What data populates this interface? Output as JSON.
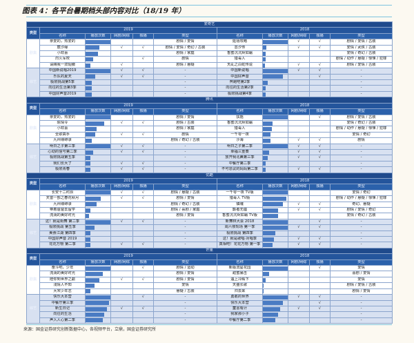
{
  "title": "图表 4：各平台暑期档头部内容对比（18/19 年）",
  "headers": {
    "category": "类型",
    "name": "名称",
    "plays": "播放次数",
    "web": "网剧/网综",
    "exclusive": "独播",
    "genre": "类型"
  },
  "row_labels": {
    "drama": "剧集",
    "variety": "综艺"
  },
  "colors": {
    "header": "#1f4a8c",
    "bar": "#4a7bc3",
    "variety_row": "#d8e1f1"
  },
  "sections": [
    {
      "platform": "爱奇艺",
      "years": [
        {
          "year": "2019",
          "drama": [
            {
              "name": "亲爱的，热爱的",
              "plays": 1.0,
              "web": "",
              "exclusive": "",
              "genre": "剧情 / 爱情"
            },
            {
              "name": "宸汐缘",
              "plays": 0.55,
              "web": "√",
              "exclusive": "√",
              "genre": "剧情 / 爱情 / 奇幻 / 古装"
            },
            {
              "name": "小欢喜",
              "plays": 0.5,
              "web": "",
              "exclusive": "",
              "genre": "剧情 / 家庭"
            },
            {
              "name": "烈火军校",
              "plays": 0.3,
              "web": "",
              "exclusive": "√",
              "genre": "剧情"
            },
            {
              "name": "请赐我一双翅膀",
              "plays": 0.2,
              "web": "√",
              "exclusive": "",
              "genre": "剧情 / 悬疑"
            }
          ],
          "variety": [
            {
              "name": "中国新说唱2019",
              "plays": 1.0,
              "web": "√",
              "exclusive": "√",
              "genre": "-"
            },
            {
              "name": "乐队的夏天",
              "plays": 0.4,
              "web": "√",
              "exclusive": "√",
              "genre": "-"
            },
            {
              "name": "极限挑战第5季",
              "plays": 0.25,
              "web": "",
              "exclusive": "",
              "genre": "-"
            },
            {
              "name": "向往的生活第3季",
              "plays": 0.25,
              "web": "",
              "exclusive": "",
              "genre": "-"
            },
            {
              "name": "中国好声音2019",
              "plays": 0.25,
              "web": "",
              "exclusive": "",
              "genre": "-"
            }
          ]
        },
        {
          "year": "2018",
          "drama": [
            {
              "name": "延禧攻略",
              "plays": 1.0,
              "web": "√",
              "exclusive": "√",
              "genre": "剧情 / 爱情 / 古装"
            },
            {
              "name": "芸汐传",
              "plays": 0.15,
              "web": "√",
              "exclusive": "√",
              "genre": "爱情 / 武侠 / 古装"
            },
            {
              "name": "香蜜沉沉烬如霜",
              "plays": 0.1,
              "web": "",
              "exclusive": "",
              "genre": "爱情 / 奇幻 / 古装"
            },
            {
              "name": "猎毒人",
              "plays": 0.1,
              "web": "",
              "exclusive": "",
              "genre": "剧情 / 动作 / 悬疑 / 惊悚 / 犯罪"
            },
            {
              "name": "天乩之白蛇传说",
              "plays": 0.08,
              "web": "√",
              "exclusive": "√",
              "genre": "剧情 / 爱情 / 古装"
            }
          ],
          "variety": [
            {
              "name": "中国新说唱",
              "plays": 1.0,
              "web": "√",
              "exclusive": "√",
              "genre": "-"
            },
            {
              "name": "中国好声音",
              "plays": 0.8,
              "web": "",
              "exclusive": "√",
              "genre": "-"
            },
            {
              "name": "奔跑吧第2季",
              "plays": 0.2,
              "web": "",
              "exclusive": "",
              "genre": "-"
            },
            {
              "name": "向往的生活第2季",
              "plays": 0.1,
              "web": "",
              "exclusive": "",
              "genre": "-"
            },
            {
              "name": "极限挑战第4季",
              "plays": 0.1,
              "web": "",
              "exclusive": "",
              "genre": "-"
            }
          ]
        }
      ]
    },
    {
      "platform": "腾讯",
      "years": [
        {
          "year": "2019",
          "drama": [
            {
              "name": "亲爱的，热爱的",
              "plays": 1.0,
              "web": "",
              "exclusive": "",
              "genre": "剧情 / 爱情"
            },
            {
              "name": "陈情令",
              "plays": 0.75,
              "web": "√",
              "exclusive": "√",
              "genre": "剧情 / 古装"
            },
            {
              "name": "小欢喜",
              "plays": 0.45,
              "web": "",
              "exclusive": "",
              "genre": "剧情 / 家庭"
            },
            {
              "name": "全职高手",
              "plays": 0.4,
              "web": "√",
              "exclusive": "√",
              "genre": "剧情"
            },
            {
              "name": "九州缥缈录",
              "plays": 0.25,
              "web": "",
              "exclusive": "",
              "genre": "剧情 / 奇幻 / 古装"
            }
          ],
          "variety": [
            {
              "name": "明日之子第三季",
              "plays": 1.0,
              "web": "√",
              "exclusive": "√",
              "genre": "-"
            },
            {
              "name": "心动的信号第二季",
              "plays": 0.3,
              "web": "√",
              "exclusive": "√",
              "genre": "-"
            },
            {
              "name": "极限挑战第五季",
              "plays": 0.2,
              "web": "",
              "exclusive": "",
              "genre": "-"
            },
            {
              "name": "我们长大了",
              "plays": 0.2,
              "web": "√",
              "exclusive": "√",
              "genre": "-"
            },
            {
              "name": "极限青春",
              "plays": 0.2,
              "web": "√",
              "exclusive": "√",
              "genre": "-"
            }
          ]
        },
        {
          "year": "2018",
          "drama": [
            {
              "name": "扶摇",
              "plays": 1.0,
              "web": "",
              "exclusive": "√",
              "genre": "剧情 / 爱情 / 古装"
            },
            {
              "name": "香蜜沉沉烬如霜",
              "plays": 0.4,
              "web": "",
              "exclusive": "",
              "genre": "爱情 / 奇幻 / 古装"
            },
            {
              "name": "猎毒人",
              "plays": 0.35,
              "web": "",
              "exclusive": "",
              "genre": "剧情 / 动作 / 悬疑 / 惊悚 / 犯罪"
            },
            {
              "name": "一千零一夜",
              "plays": 0.3,
              "web": "",
              "exclusive": "",
              "genre": "爱情 / 奇幻"
            },
            {
              "name": "沙海",
              "plays": 0.3,
              "web": "√",
              "exclusive": "√",
              "genre": "剧情"
            }
          ],
          "variety": [
            {
              "name": "明日之子第二季",
              "plays": 1.0,
              "web": "√",
              "exclusive": "√",
              "genre": "-"
            },
            {
              "name": "幸福三重奏",
              "plays": 0.25,
              "web": "√",
              "exclusive": "√",
              "genre": "-"
            },
            {
              "name": "放开我北鼻第三季",
              "plays": 0.2,
              "web": "√",
              "exclusive": "√",
              "genre": "-"
            },
            {
              "name": "中餐厅第二季",
              "plays": 0.1,
              "web": "",
              "exclusive": "",
              "genre": "-"
            },
            {
              "name": "不可思议的妈妈第二季",
              "plays": 0.1,
              "web": "√",
              "exclusive": "√",
              "genre": "-"
            }
          ]
        }
      ]
    },
    {
      "platform": "优酷",
      "years": [
        {
          "year": "2019",
          "drama": [
            {
              "name": "长安十二时辰",
              "plays": 1.0,
              "web": "√",
              "exclusive": "√",
              "genre": "剧情 / 悬疑 / 古装"
            },
            {
              "name": "天雷一部之春花秋月",
              "plays": 0.6,
              "web": "√",
              "exclusive": "√",
              "genre": "剧情 / 爱情"
            },
            {
              "name": "九州缥缈录",
              "plays": 0.45,
              "web": "",
              "exclusive": "",
              "genre": "剧情 / 奇幻 / 古装"
            },
            {
              "name": "带着爸爸去留学",
              "plays": 0.2,
              "web": "",
              "exclusive": "",
              "genre": "剧情 / 喜剧 / 家庭"
            },
            {
              "name": "流淌的美好时光",
              "plays": 0.15,
              "web": "",
              "exclusive": "",
              "genre": "剧情 / 爱情"
            }
          ],
          "variety": [
            {
              "name": "这！就是街舞 第二季",
              "plays": 1.0,
              "web": "√",
              "exclusive": "√",
              "genre": "-"
            },
            {
              "name": "极限挑战 第五季",
              "plays": 0.35,
              "web": "",
              "exclusive": "",
              "genre": "-"
            },
            {
              "name": "美食江湖 第四季",
              "plays": 0.2,
              "web": "",
              "exclusive": "",
              "genre": "-"
            },
            {
              "name": "中国好声音 2019",
              "plays": 0.2,
              "web": "",
              "exclusive": "",
              "genre": "-"
            },
            {
              "name": "花花万物 第二季",
              "plays": 0.2,
              "web": "√",
              "exclusive": "√",
              "genre": "-"
            }
          ]
        },
        {
          "year": "2018",
          "drama": [
            {
              "name": "一千零一夜 TV版",
              "plays": 1.0,
              "web": "",
              "exclusive": "",
              "genre": "爱情 / 奇幻"
            },
            {
              "name": "猎毒人 TV版",
              "plays": 0.95,
              "web": "",
              "exclusive": "",
              "genre": "剧情 / 动作 / 悬疑 / 惊悚 / 犯罪"
            },
            {
              "name": "镇魂",
              "plays": 0.8,
              "web": "√",
              "exclusive": "√",
              "genre": "奇幻、悬疑"
            },
            {
              "name": "颤者无疆",
              "plays": 0.6,
              "web": "√",
              "exclusive": "√",
              "genre": "剧情 / 爱情 / 奇幻"
            },
            {
              "name": "香蜜沉沉烬如霜 TV版",
              "plays": 0.6,
              "web": "",
              "exclusive": "",
              "genre": "爱情 / 奇幻 / 古装"
            }
          ],
          "variety": [
            {
              "name": "新舞林大会 2018",
              "plays": 1.0,
              "web": "",
              "exclusive": "√",
              "genre": "-"
            },
            {
              "name": "周六夜现场 第一季",
              "plays": 1.0,
              "web": "√",
              "exclusive": "√",
              "genre": "-"
            },
            {
              "name": "极限挑战 第四季",
              "plays": 0.5,
              "web": "",
              "exclusive": "",
              "genre": "-"
            },
            {
              "name": "这！就是歌唱·对唱季",
              "plays": 0.45,
              "web": "√",
              "exclusive": "√",
              "genre": "-"
            },
            {
              "name": "真相吧！花花万物 第一季",
              "plays": 0.4,
              "web": "√",
              "exclusive": "√",
              "genre": "-"
            }
          ]
        }
      ]
    },
    {
      "platform": "芒果",
      "years": [
        {
          "year": "2019",
          "drama": [
            {
              "name": "奋斗吧，少年",
              "plays": 1.0,
              "web": "",
              "exclusive": "√",
              "genre": "剧情 / 运动"
            },
            {
              "name": "流淌的美好时光",
              "plays": 0.7,
              "web": "",
              "exclusive": "",
              "genre": "剧情 / 爱情"
            },
            {
              "name": "陪你到世界之巅",
              "plays": 0.55,
              "web": "√",
              "exclusive": "√",
              "genre": "剧情 / 爱情"
            },
            {
              "name": "浅情人不知",
              "plays": 0.35,
              "web": "",
              "exclusive": "",
              "genre": "爱情"
            },
            {
              "name": "大宋少年志",
              "plays": 0.2,
              "web": "",
              "exclusive": "",
              "genre": "悬疑 / 古装"
            }
          ],
          "variety": [
            {
              "name": "快乐大本营",
              "plays": 1.0,
              "web": "",
              "exclusive": "√",
              "genre": "-"
            },
            {
              "name": "中餐厅第三季",
              "plays": 0.95,
              "web": "",
              "exclusive": "",
              "genre": "-"
            },
            {
              "name": "新生日记",
              "plays": 0.85,
              "web": "√",
              "exclusive": "√",
              "genre": "-"
            },
            {
              "name": "向往的生活",
              "plays": 0.75,
              "web": "",
              "exclusive": "",
              "genre": "-"
            },
            {
              "name": "声入人心第二季",
              "plays": 0.7,
              "web": "",
              "exclusive": "",
              "genre": "-"
            }
          ]
        },
        {
          "year": "2018",
          "drama": [
            {
              "name": "新版流星花园",
              "plays": 1.0,
              "web": "",
              "exclusive": "√",
              "genre": "爱情"
            },
            {
              "name": "甜蜜暴击",
              "plays": 0.25,
              "web": "",
              "exclusive": "",
              "genre": "喜剧 / 爱情"
            },
            {
              "name": "遇上冷殿下",
              "plays": 0.12,
              "web": "",
              "exclusive": "",
              "genre": "爱情"
            },
            {
              "name": "天盛长歌",
              "plays": 0.04,
              "web": "",
              "exclusive": "",
              "genre": "剧情 / 爱情 / 古装"
            },
            {
              "name": "归去来",
              "plays": 0.02,
              "web": "",
              "exclusive": "",
              "genre": "剧情 / 爱情"
            }
          ],
          "variety": [
            {
              "name": "勇敢的世界",
              "plays": 1.0,
              "web": "√",
              "exclusive": "√",
              "genre": "-"
            },
            {
              "name": "快乐大本营",
              "plays": 0.8,
              "web": "",
              "exclusive": "√",
              "genre": "-"
            },
            {
              "name": "童言有计",
              "plays": 0.7,
              "web": "√",
              "exclusive": "√",
              "genre": "-"
            },
            {
              "name": "我家那小子",
              "plays": 0.6,
              "web": "",
              "exclusive": "",
              "genre": "-"
            },
            {
              "name": "中餐厅第二季",
              "plays": 0.5,
              "web": "",
              "exclusive": "",
              "genre": "-"
            }
          ]
        }
      ]
    }
  ],
  "source": "来源：国金证券研究创新数据中心，各视频平台，立鼎，国金证券研究所"
}
